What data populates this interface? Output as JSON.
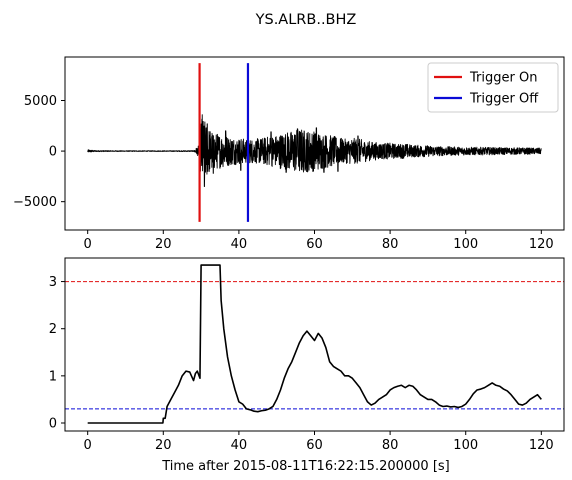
{
  "figure": {
    "title": "YS.ALRB..BHZ"
  },
  "chart_data": [
    {
      "type": "line",
      "panel": "waveform",
      "xlim": [
        -6,
        126
      ],
      "ylim": [
        -7800,
        9300
      ],
      "x_ticks": [
        0,
        20,
        40,
        60,
        80,
        100,
        120
      ],
      "x_tick_labels": [
        "0",
        "20",
        "40",
        "60",
        "80",
        "100",
        "120"
      ],
      "y_ticks": [
        -5000,
        0,
        5000
      ],
      "y_tick_labels": [
        "−5000",
        "0",
        "5000"
      ],
      "trace_color": "#000000",
      "envelope": [
        [
          0,
          150
        ],
        [
          2,
          60
        ],
        [
          10,
          40
        ],
        [
          20,
          40
        ],
        [
          28,
          50
        ],
        [
          29.5,
          600
        ],
        [
          30,
          3500
        ],
        [
          31,
          3000
        ],
        [
          32,
          2300
        ],
        [
          34,
          1800
        ],
        [
          36,
          1600
        ],
        [
          38,
          1400
        ],
        [
          40,
          1300
        ],
        [
          42,
          1200
        ],
        [
          44,
          1200
        ],
        [
          46,
          1300
        ],
        [
          48,
          1500
        ],
        [
          50,
          1600
        ],
        [
          52,
          1900
        ],
        [
          54,
          2000
        ],
        [
          56,
          2300
        ],
        [
          58,
          2100
        ],
        [
          60,
          2000
        ],
        [
          62,
          1800
        ],
        [
          64,
          1600
        ],
        [
          66,
          1400
        ],
        [
          68,
          1200
        ],
        [
          70,
          1300
        ],
        [
          72,
          1200
        ],
        [
          74,
          1000
        ],
        [
          76,
          900
        ],
        [
          78,
          800
        ],
        [
          80,
          800
        ],
        [
          82,
          700
        ],
        [
          84,
          750
        ],
        [
          86,
          600
        ],
        [
          88,
          600
        ],
        [
          90,
          550
        ],
        [
          92,
          500
        ],
        [
          95,
          450
        ],
        [
          100,
          400
        ],
        [
          105,
          380
        ],
        [
          110,
          350
        ],
        [
          115,
          330
        ],
        [
          120,
          300
        ]
      ],
      "spikes": [
        {
          "x": 30.3,
          "y": 3600
        },
        {
          "x": 30.9,
          "y": -3500
        },
        {
          "x": 31.6,
          "y": 2700
        },
        {
          "x": 33.2,
          "y": -2200
        },
        {
          "x": 36.5,
          "y": 2000
        },
        {
          "x": 40.5,
          "y": -1900
        },
        {
          "x": 48.5,
          "y": 1900
        },
        {
          "x": 52.5,
          "y": -2100
        },
        {
          "x": 55.5,
          "y": 2200
        },
        {
          "x": 58.2,
          "y": -2000
        },
        {
          "x": 60.5,
          "y": 2300
        },
        {
          "x": 62.5,
          "y": -2100
        },
        {
          "x": 66.2,
          "y": -2000
        },
        {
          "x": 71.5,
          "y": 1500
        }
      ],
      "triggers": [
        {
          "name": "Trigger On",
          "x": 29.6,
          "ymin": -7000,
          "ymax": 8700,
          "color": "#e01010"
        },
        {
          "name": "Trigger Off",
          "x": 42.4,
          "ymin": -7000,
          "ymax": 8700,
          "color": "#0a0ad6"
        }
      ],
      "legend": {
        "position": "top-right",
        "entries": [
          "Trigger On",
          "Trigger Off"
        ]
      }
    },
    {
      "type": "line",
      "panel": "characteristic-function",
      "xlim": [
        -6,
        126
      ],
      "ylim": [
        -0.17,
        3.5
      ],
      "x_ticks": [
        0,
        20,
        40,
        60,
        80,
        100,
        120
      ],
      "x_tick_labels": [
        "0",
        "20",
        "40",
        "60",
        "80",
        "100",
        "120"
      ],
      "y_ticks": [
        0,
        1,
        2,
        3
      ],
      "y_tick_labels": [
        "0",
        "1",
        "2",
        "3"
      ],
      "xlabel": "Time after 2015-08-11T16:22:15.200000 [s]",
      "series": [
        {
          "values": [
            [
              0,
              0
            ],
            [
              19.9,
              0
            ],
            [
              20,
              0.1
            ],
            [
              20.5,
              0.1
            ],
            [
              21,
              0.35
            ],
            [
              22,
              0.5
            ],
            [
              23,
              0.65
            ],
            [
              24,
              0.8
            ],
            [
              25,
              1.0
            ],
            [
              26,
              1.1
            ],
            [
              27,
              1.08
            ],
            [
              28,
              0.9
            ],
            [
              28.5,
              1.05
            ],
            [
              29,
              1.1
            ],
            [
              29.7,
              0.95
            ],
            [
              30,
              3.35
            ],
            [
              31,
              3.35
            ],
            [
              34,
              3.35
            ],
            [
              35,
              3.35
            ],
            [
              35.3,
              2.6
            ],
            [
              36,
              2.0
            ],
            [
              37,
              1.4
            ],
            [
              38,
              1.0
            ],
            [
              39,
              0.7
            ],
            [
              40,
              0.45
            ],
            [
              41,
              0.4
            ],
            [
              42,
              0.3
            ],
            [
              43,
              0.28
            ],
            [
              44,
              0.25
            ],
            [
              45,
              0.24
            ],
            [
              46,
              0.26
            ],
            [
              47,
              0.27
            ],
            [
              48,
              0.3
            ],
            [
              49,
              0.35
            ],
            [
              50,
              0.5
            ],
            [
              51,
              0.7
            ],
            [
              52,
              0.95
            ],
            [
              53,
              1.15
            ],
            [
              54,
              1.3
            ],
            [
              55,
              1.5
            ],
            [
              56,
              1.7
            ],
            [
              57,
              1.85
            ],
            [
              58,
              1.95
            ],
            [
              59,
              1.85
            ],
            [
              60,
              1.75
            ],
            [
              61,
              1.9
            ],
            [
              62,
              1.8
            ],
            [
              63,
              1.6
            ],
            [
              64,
              1.3
            ],
            [
              65,
              1.2
            ],
            [
              66,
              1.15
            ],
            [
              67,
              1.1
            ],
            [
              68,
              1.0
            ],
            [
              69,
              1.0
            ],
            [
              70,
              0.95
            ],
            [
              71,
              0.85
            ],
            [
              72,
              0.75
            ],
            [
              73,
              0.6
            ],
            [
              74,
              0.45
            ],
            [
              75,
              0.38
            ],
            [
              76,
              0.42
            ],
            [
              77,
              0.5
            ],
            [
              78,
              0.55
            ],
            [
              79,
              0.6
            ],
            [
              80,
              0.7
            ],
            [
              81,
              0.75
            ],
            [
              82,
              0.78
            ],
            [
              83,
              0.8
            ],
            [
              84,
              0.75
            ],
            [
              85,
              0.8
            ],
            [
              86,
              0.78
            ],
            [
              87,
              0.7
            ],
            [
              88,
              0.6
            ],
            [
              89,
              0.55
            ],
            [
              90,
              0.5
            ],
            [
              91,
              0.5
            ],
            [
              92,
              0.45
            ],
            [
              93,
              0.38
            ],
            [
              94,
              0.35
            ],
            [
              95,
              0.36
            ],
            [
              96,
              0.34
            ],
            [
              97,
              0.35
            ],
            [
              98,
              0.33
            ],
            [
              99,
              0.35
            ],
            [
              100,
              0.4
            ],
            [
              101,
              0.5
            ],
            [
              102,
              0.62
            ],
            [
              103,
              0.7
            ],
            [
              104,
              0.72
            ],
            [
              105,
              0.75
            ],
            [
              106,
              0.8
            ],
            [
              107,
              0.85
            ],
            [
              108,
              0.8
            ],
            [
              109,
              0.78
            ],
            [
              110,
              0.72
            ],
            [
              111,
              0.68
            ],
            [
              112,
              0.6
            ],
            [
              113,
              0.5
            ],
            [
              114,
              0.4
            ],
            [
              115,
              0.38
            ],
            [
              116,
              0.42
            ],
            [
              117,
              0.5
            ],
            [
              118,
              0.55
            ],
            [
              119,
              0.6
            ],
            [
              120,
              0.5
            ]
          ],
          "color": "#000000"
        }
      ],
      "thresholds": [
        {
          "y": 3.0,
          "color": "#e01010",
          "style": "dashed"
        },
        {
          "y": 0.3,
          "color": "#0a0ad6",
          "style": "dashed"
        }
      ]
    }
  ]
}
